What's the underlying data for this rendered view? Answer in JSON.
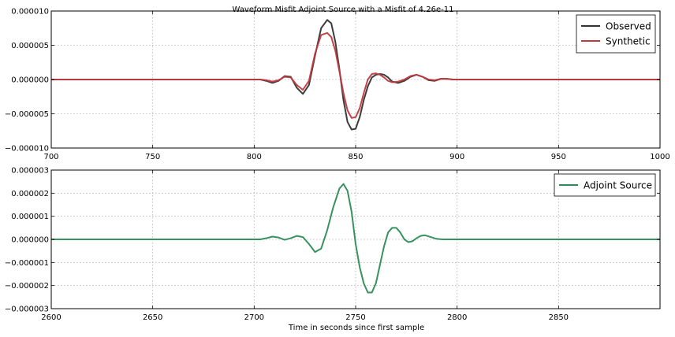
{
  "figure_title": "Waveform Misfit Adjoint Source with a Misfit of 4.26e-11",
  "xlabel_bottom": "Time in seconds since first sample",
  "chart_data": [
    {
      "type": "line",
      "title": "Waveform Misfit Adjoint Source with a Misfit of 4.26e-11",
      "xlabel": "",
      "ylabel": "",
      "xlim": [
        700,
        1000
      ],
      "ylim": [
        -1e-05,
        1e-05
      ],
      "xticks": [
        700,
        750,
        800,
        850,
        900,
        950,
        1000
      ],
      "xtick_labels": [
        "700",
        "750",
        "800",
        "850",
        "900",
        "950",
        "1000"
      ],
      "yticks": [
        -1e-05,
        -5e-06,
        0,
        5e-06,
        1e-05
      ],
      "ytick_labels": [
        "−0.000010",
        "−0.000005",
        "0.000000",
        "0.000005",
        "0.000010"
      ],
      "grid": true,
      "legend_position": "top-right",
      "series": [
        {
          "name": "Observed",
          "color": "#333333",
          "x": [
            700,
            800,
            803,
            806,
            809,
            812,
            815,
            818,
            821,
            824,
            827,
            830,
            833,
            836,
            838,
            840,
            842,
            844,
            846,
            848,
            850,
            852,
            854,
            856,
            858,
            860,
            862,
            864,
            866,
            868,
            871,
            874,
            877,
            880,
            883,
            886,
            889,
            892,
            895,
            898,
            901,
            1000
          ],
          "y": [
            0,
            0,
            0,
            -2e-07,
            -5e-07,
            -2e-07,
            5e-07,
            4e-07,
            -1.2e-06,
            -2.1e-06,
            -8e-07,
            3.5e-06,
            7.5e-06,
            8.7e-06,
            8.2e-06,
            5.5e-06,
            1.5e-06,
            -3e-06,
            -6.2e-06,
            -7.3e-06,
            -7.2e-06,
            -5.5e-06,
            -3e-06,
            -1e-06,
            3e-07,
            7e-07,
            8e-07,
            7e-07,
            3e-07,
            -3e-07,
            -5e-07,
            -2e-07,
            4e-07,
            7e-07,
            4e-07,
            -1e-07,
            -2e-07,
            1e-07,
            1e-07,
            0,
            0,
            0
          ]
        },
        {
          "name": "Synthetic",
          "color": "#c03a3e",
          "x": [
            700,
            800,
            803,
            806,
            809,
            812,
            815,
            818,
            821,
            824,
            827,
            830,
            833,
            836,
            838,
            840,
            842,
            844,
            846,
            848,
            850,
            852,
            854,
            856,
            858,
            860,
            862,
            864,
            866,
            868,
            871,
            874,
            877,
            880,
            883,
            886,
            889,
            892,
            895,
            898,
            901,
            1000
          ],
          "y": [
            0,
            0,
            0,
            -1e-07,
            -3e-07,
            -1e-07,
            4e-07,
            3e-07,
            -8e-07,
            -1.5e-06,
            -2e-07,
            3.8e-06,
            6.5e-06,
            6.8e-06,
            6.2e-06,
            4.2e-06,
            1.2e-06,
            -2e-06,
            -4.5e-06,
            -5.6e-06,
            -5.5e-06,
            -4.2e-06,
            -2e-06,
            0,
            8e-07,
            9e-07,
            7e-07,
            3e-07,
            -2e-07,
            -4e-07,
            -3e-07,
            0,
            5e-07,
            7e-07,
            4e-07,
            0,
            -1e-07,
            1e-07,
            1e-07,
            0,
            0,
            0
          ]
        }
      ]
    },
    {
      "type": "line",
      "title": "",
      "xlabel": "Time in seconds since first sample",
      "ylabel": "",
      "xlim": [
        2600,
        2900
      ],
      "ylim": [
        -3e-06,
        3e-06
      ],
      "xticks": [
        2600,
        2650,
        2700,
        2750,
        2800,
        2850
      ],
      "xtick_labels": [
        "2600",
        "2650",
        "2700",
        "2750",
        "2800",
        "2850"
      ],
      "yticks": [
        -3e-06,
        -2e-06,
        -1e-06,
        0,
        1e-06,
        2e-06,
        3e-06
      ],
      "ytick_labels": [
        "−0.000003",
        "−0.000002",
        "−0.000001",
        "0.000000",
        "0.000001",
        "0.000002",
        "0.000003"
      ],
      "grid": true,
      "legend_position": "top-right",
      "series": [
        {
          "name": "Adjoint Source",
          "color": "#2e8b57",
          "x": [
            2600,
            2700,
            2703,
            2706,
            2709,
            2712,
            2715,
            2718,
            2721,
            2724,
            2727,
            2730,
            2733,
            2736,
            2739,
            2742,
            2744,
            2746,
            2748,
            2750,
            2752,
            2754,
            2756,
            2758,
            2760,
            2762,
            2764,
            2766,
            2768,
            2770,
            2772,
            2774,
            2776,
            2778,
            2780,
            2782,
            2784,
            2787,
            2790,
            2793,
            2796,
            2799,
            2900
          ],
          "y": [
            0,
            0,
            0,
            5e-08,
            1.2e-07,
            8e-08,
            -2e-08,
            5e-08,
            1.5e-07,
            1e-07,
            -2e-07,
            -5.5e-07,
            -4e-07,
            4e-07,
            1.4e-06,
            2.2e-06,
            2.4e-06,
            2.1e-06,
            1.2e-06,
            -2e-07,
            -1.2e-06,
            -1.9e-06,
            -2.3e-06,
            -2.3e-06,
            -1.9e-06,
            -1.1e-06,
            -3e-07,
            3e-07,
            5e-07,
            5e-07,
            3e-07,
            0,
            -1.2e-07,
            -8e-08,
            5e-08,
            1.5e-07,
            1.8e-07,
            1e-07,
            2e-08,
            0,
            0,
            0,
            0
          ]
        }
      ]
    }
  ]
}
